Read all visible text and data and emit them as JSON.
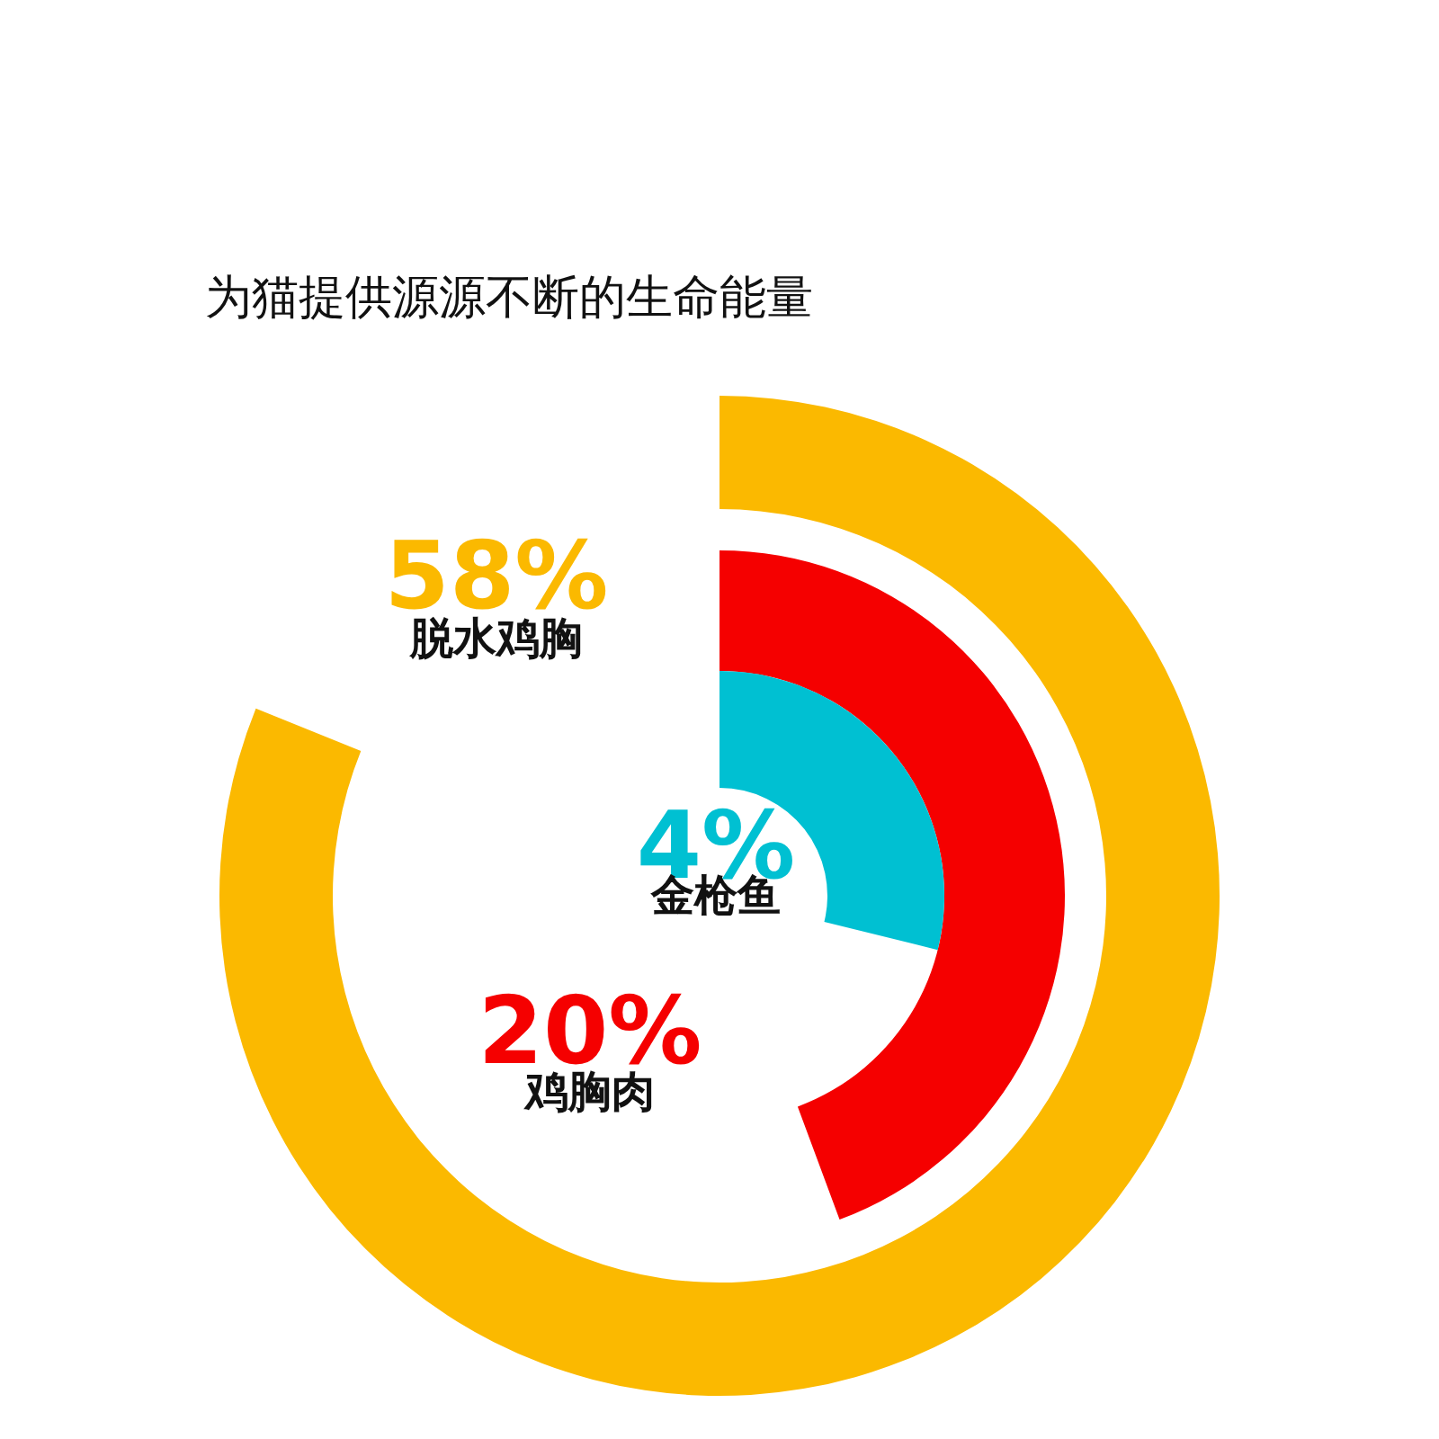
{
  "chart_data": {
    "type": "other",
    "subtitle": "为猫提供源源不断的生命能量",
    "categories": [
      "脱水鸡胸",
      "鸡胸肉",
      "金枪鱼"
    ],
    "values": [
      58,
      20,
      4
    ],
    "colors": [
      "#fbb900",
      "#f50000",
      "#00c0d2"
    ],
    "value_labels": [
      "58%",
      "20%",
      "4%"
    ]
  }
}
